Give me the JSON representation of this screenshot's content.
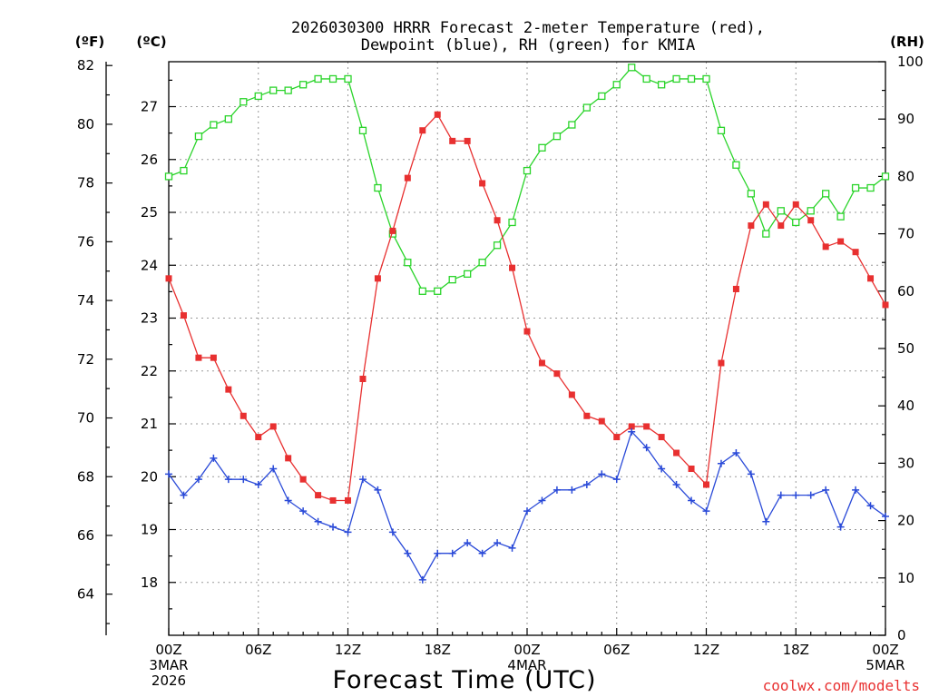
{
  "chart_data": {
    "type": "line",
    "title": [
      "2026030300 HRRR Forecast 2-meter Temperature (red),",
      "Dewpoint (blue), RH (green) for KMIA"
    ],
    "xlabel": "Forecast Time (UTC)",
    "credit": "coolwx.com/modelts",
    "units": {
      "f": "(ºF)",
      "c": "(ºC)",
      "rh": "(RH)"
    },
    "ylim_c": [
      17.0,
      27.85
    ],
    "ylim_rh": [
      0,
      100
    ],
    "f_ticks": [
      "82",
      "80",
      "78",
      "76",
      "74",
      "72",
      "70",
      "68",
      "66",
      "64"
    ],
    "c_ticks": [
      "27",
      "26",
      "25",
      "24",
      "23",
      "22",
      "21",
      "20",
      "19",
      "18"
    ],
    "rh_ticks": [
      "100",
      "90",
      "80",
      "70",
      "60",
      "50",
      "40",
      "30",
      "20",
      "10",
      "0"
    ],
    "x_ticks": [
      {
        "hour": 0,
        "label": "00Z",
        "sub1": "3MAR",
        "sub2": "2026"
      },
      {
        "hour": 6,
        "label": "06Z",
        "sub1": "",
        "sub2": ""
      },
      {
        "hour": 12,
        "label": "12Z",
        "sub1": "",
        "sub2": ""
      },
      {
        "hour": 18,
        "label": "18Z",
        "sub1": "",
        "sub2": ""
      },
      {
        "hour": 24,
        "label": "00Z",
        "sub1": "4MAR",
        "sub2": ""
      },
      {
        "hour": 30,
        "label": "06Z",
        "sub1": "",
        "sub2": ""
      },
      {
        "hour": 36,
        "label": "12Z",
        "sub1": "",
        "sub2": ""
      },
      {
        "hour": 42,
        "label": "18Z",
        "sub1": "",
        "sub2": ""
      },
      {
        "hour": 48,
        "label": "00Z",
        "sub1": "5MAR",
        "sub2": ""
      }
    ],
    "grid": true,
    "series": [
      {
        "key": "temperature",
        "unit": "°C",
        "color": "#e83030",
        "marker": "filled-square",
        "values": [
          23.75,
          23.05,
          22.25,
          22.25,
          21.65,
          21.15,
          20.75,
          20.95,
          20.35,
          19.95,
          19.65,
          19.55,
          19.55,
          21.85,
          23.75,
          24.65,
          25.65,
          26.55,
          26.85,
          26.35,
          26.35,
          25.55,
          24.85,
          23.95,
          22.75,
          22.15,
          21.95,
          21.55,
          21.15,
          21.05,
          20.75,
          20.95,
          20.95,
          20.75,
          20.45,
          20.15,
          19.85,
          22.15,
          23.55,
          24.75,
          25.15,
          24.75,
          25.15,
          24.85,
          24.35,
          24.45,
          24.25,
          23.75,
          23.25
        ]
      },
      {
        "key": "dewpoint",
        "unit": "°C",
        "color": "#2a4ad8",
        "marker": "plus",
        "values": [
          20.05,
          19.65,
          19.95,
          20.35,
          19.95,
          19.95,
          19.85,
          20.15,
          19.55,
          19.35,
          19.15,
          19.05,
          18.95,
          19.95,
          19.75,
          18.95,
          18.55,
          18.05,
          18.55,
          18.55,
          18.75,
          18.55,
          18.75,
          18.65,
          19.35,
          19.55,
          19.75,
          19.75,
          19.85,
          20.05,
          19.95,
          20.85,
          20.55,
          20.15,
          19.85,
          19.55,
          19.35,
          20.25,
          20.45,
          20.05,
          19.15,
          19.65,
          19.65,
          19.65,
          19.75,
          19.05,
          19.75,
          19.45,
          19.25
        ]
      },
      {
        "key": "rh",
        "unit": "%",
        "color": "#2ad42a",
        "marker": "open-square",
        "values": [
          80,
          81,
          87,
          89,
          90,
          93,
          94,
          95,
          95,
          96,
          97,
          97,
          97,
          88,
          78,
          70,
          65,
          60,
          60,
          62,
          63,
          65,
          68,
          72,
          81,
          85,
          87,
          89,
          92,
          94,
          96,
          99,
          97,
          96,
          97,
          97,
          97,
          88,
          82,
          77,
          70,
          74,
          72,
          74,
          77,
          73,
          78,
          78,
          80
        ]
      }
    ]
  }
}
